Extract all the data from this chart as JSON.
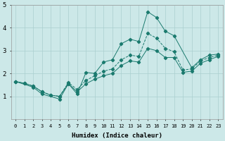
{
  "xlabel": "Humidex (Indice chaleur)",
  "xlim": [
    -0.5,
    23.5
  ],
  "ylim": [
    0,
    5
  ],
  "xticks": [
    0,
    1,
    2,
    3,
    4,
    5,
    6,
    7,
    8,
    9,
    10,
    11,
    12,
    13,
    14,
    15,
    16,
    17,
    18,
    19,
    20,
    21,
    22,
    23
  ],
  "yticks": [
    1,
    2,
    3,
    4,
    5
  ],
  "bg_color": "#cce8e8",
  "line_color": "#1a7a6e",
  "grid_color": "#aacfcf",
  "line_top_x": [
    0,
    2,
    3,
    5,
    6,
    7,
    8,
    9,
    10,
    11,
    12,
    13,
    14,
    15,
    16,
    17,
    18,
    20,
    21,
    22,
    23
  ],
  "line_top_y": [
    1.65,
    1.4,
    1.1,
    0.88,
    1.55,
    1.1,
    2.05,
    2.0,
    2.5,
    2.6,
    3.3,
    3.5,
    3.4,
    4.7,
    4.45,
    3.85,
    3.65,
    2.25,
    2.6,
    2.8,
    2.85
  ],
  "line_mid_x": [
    0,
    1,
    2,
    3,
    4,
    5,
    6,
    7,
    8,
    9,
    10,
    11,
    12,
    13,
    14,
    15,
    16,
    17,
    18,
    19,
    20,
    21,
    22,
    23
  ],
  "line_mid_y": [
    1.65,
    1.57,
    1.45,
    1.2,
    1.05,
    1.0,
    1.6,
    1.3,
    1.7,
    1.9,
    2.1,
    2.2,
    2.6,
    2.8,
    2.75,
    3.75,
    3.55,
    3.1,
    2.95,
    2.15,
    2.2,
    2.55,
    2.7,
    2.8
  ],
  "line_bot_x": [
    0,
    1,
    2,
    3,
    4,
    5,
    6,
    7,
    8,
    9,
    10,
    11,
    12,
    13,
    14,
    15,
    16,
    17,
    18,
    19,
    20,
    21,
    22,
    23
  ],
  "line_bot_y": [
    1.65,
    1.57,
    1.45,
    1.2,
    1.05,
    1.0,
    1.55,
    1.2,
    1.55,
    1.75,
    1.9,
    2.0,
    2.35,
    2.55,
    2.5,
    3.1,
    3.0,
    2.7,
    2.7,
    2.05,
    2.1,
    2.45,
    2.6,
    2.75
  ]
}
